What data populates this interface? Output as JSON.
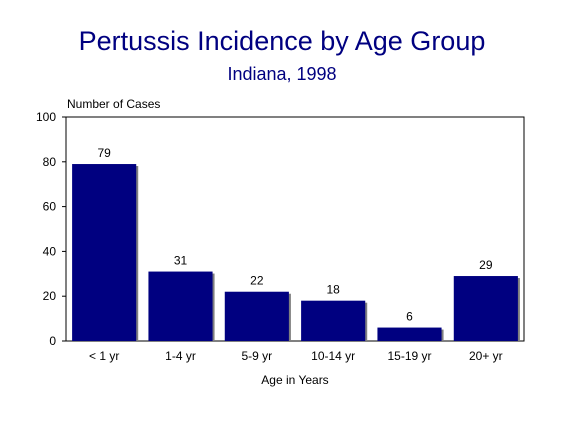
{
  "chart_data": {
    "type": "bar",
    "title": "Pertussis Incidence by Age Group",
    "subtitle": "Indiana, 1998",
    "ylabel": "Number of Cases",
    "xlabel": "Age in Years",
    "ylim": [
      0,
      100
    ],
    "yticks": [
      0,
      20,
      40,
      60,
      80,
      100
    ],
    "categories": [
      "< 1 yr",
      "1-4 yr",
      "5-9 yr",
      "10-14 yr",
      "15-19 yr",
      "20+ yr"
    ],
    "values": [
      79,
      31,
      22,
      18,
      6,
      29
    ],
    "grid": false,
    "bar_color": "#000080"
  }
}
